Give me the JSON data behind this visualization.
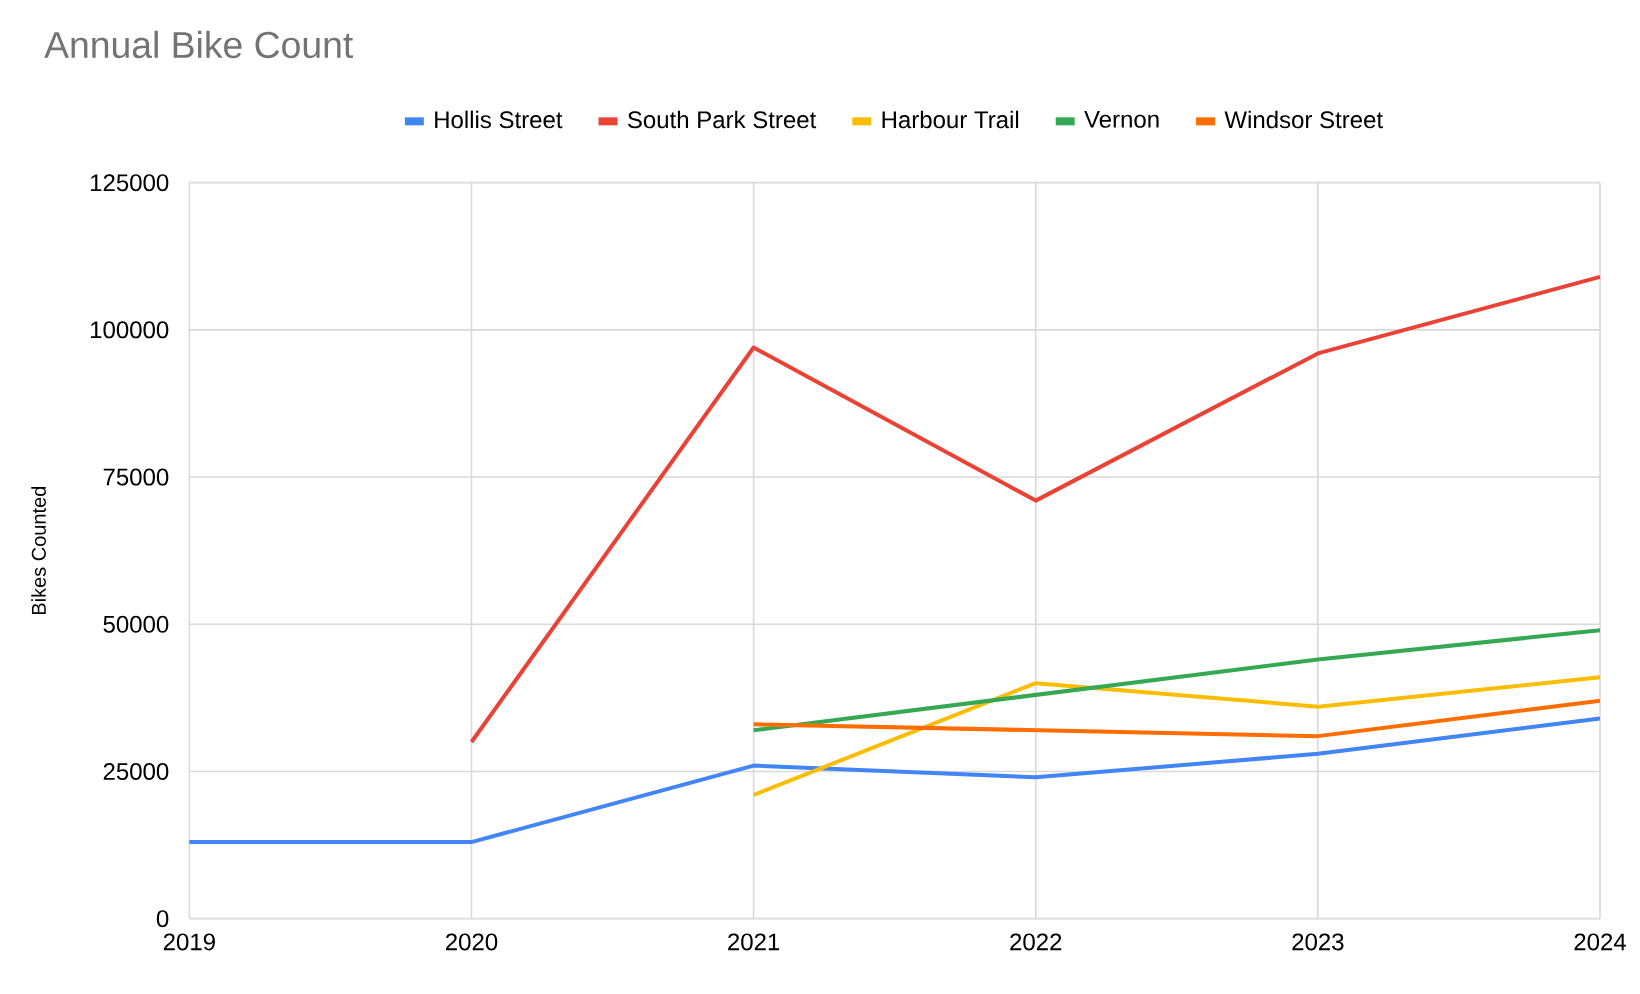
{
  "chart_data": {
    "type": "line",
    "title": "Annual Bike Count",
    "ylabel": "Bikes Counted",
    "x": [
      2019,
      2020,
      2021,
      2022,
      2023,
      2024
    ],
    "series": [
      {
        "name": "Hollis Street",
        "color": "#4285f4",
        "values": [
          13000,
          13000,
          26000,
          24000,
          28000,
          34000
        ]
      },
      {
        "name": "South Park Street",
        "color": "#ea4335",
        "values": [
          null,
          30000,
          97000,
          71000,
          96000,
          109000
        ]
      },
      {
        "name": "Harbour Trail",
        "color": "#fbbc04",
        "values": [
          null,
          null,
          21000,
          40000,
          36000,
          41000
        ]
      },
      {
        "name": "Vernon",
        "color": "#34a853",
        "values": [
          null,
          null,
          32000,
          38000,
          44000,
          49000
        ]
      },
      {
        "name": "Windsor Street",
        "color": "#ff6d01",
        "values": [
          null,
          null,
          33000,
          32000,
          31000,
          37000
        ]
      }
    ],
    "xlim": [
      2019,
      2024
    ],
    "ylim": [
      0,
      125000
    ],
    "xticks": [
      2019,
      2020,
      2021,
      2022,
      2023,
      2024
    ],
    "yticks": [
      0,
      25000,
      50000,
      75000,
      100000,
      125000
    ],
    "grid": true,
    "legend": "top"
  }
}
